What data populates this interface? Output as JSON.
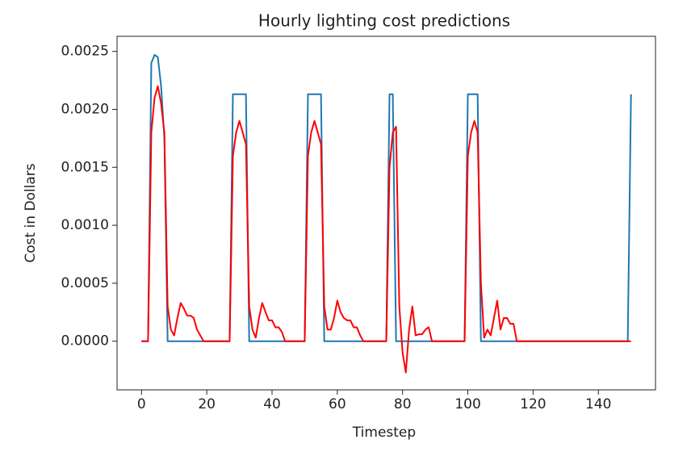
{
  "chart_data": {
    "type": "line",
    "title": "Hourly lighting cost predictions",
    "x_label": "Timestep",
    "y_label": "Cost in Dollars",
    "x": [
      0,
      1,
      2,
      3,
      4,
      5,
      6,
      7,
      8,
      9,
      10,
      11,
      12,
      13,
      14,
      15,
      16,
      17,
      18,
      19,
      20,
      21,
      22,
      23,
      24,
      25,
      26,
      27,
      28,
      29,
      30,
      31,
      32,
      33,
      34,
      35,
      36,
      37,
      38,
      39,
      40,
      41,
      42,
      43,
      44,
      45,
      46,
      47,
      48,
      49,
      50,
      51,
      52,
      53,
      54,
      55,
      56,
      57,
      58,
      59,
      60,
      61,
      62,
      63,
      64,
      65,
      66,
      67,
      68,
      69,
      70,
      71,
      72,
      73,
      74,
      75,
      76,
      77,
      78,
      79,
      80,
      81,
      82,
      83,
      84,
      85,
      86,
      87,
      88,
      89,
      90,
      91,
      92,
      93,
      94,
      95,
      96,
      97,
      98,
      99,
      100,
      101,
      102,
      103,
      104,
      105,
      106,
      107,
      108,
      109,
      110,
      111,
      112,
      113,
      114,
      115,
      116,
      117,
      118,
      119,
      120,
      121,
      122,
      123,
      124,
      125,
      126,
      127,
      128,
      129,
      130,
      131,
      132,
      133,
      134,
      135,
      136,
      137,
      138,
      139,
      140,
      141,
      142,
      143,
      144,
      145,
      146,
      147,
      148,
      149,
      150
    ],
    "series": [
      {
        "color": "#1f77b4",
        "values": [
          0,
          0,
          0,
          0.0024,
          0.00247,
          0.00245,
          0.0022,
          0.00175,
          0,
          0,
          0,
          0,
          0,
          0,
          0,
          0,
          0,
          0,
          0,
          0,
          0,
          0,
          0,
          0,
          0,
          0,
          0,
          0,
          0.00213,
          0.00213,
          0.00213,
          0.00213,
          0.00213,
          0,
          0,
          0,
          0,
          0,
          0,
          0,
          0,
          0,
          0,
          0,
          0,
          0,
          0,
          0,
          0,
          0,
          0,
          0.00213,
          0.00213,
          0.00213,
          0.00213,
          0.00213,
          0,
          0,
          0,
          0,
          0,
          0,
          0,
          0,
          0,
          0,
          0,
          0,
          0,
          0,
          0,
          0,
          0,
          0,
          0,
          0,
          0.00213,
          0.00213,
          0,
          0,
          0,
          0,
          0,
          0,
          0,
          0,
          0,
          0,
          0,
          0,
          0,
          0,
          0,
          0,
          0,
          0,
          0,
          0,
          0,
          0,
          0.00213,
          0.00213,
          0.00213,
          0.00213,
          0,
          0,
          0,
          0,
          0,
          0,
          0,
          0,
          0,
          0,
          0,
          0,
          0,
          0,
          0,
          0,
          0,
          0,
          0,
          0,
          0,
          0,
          0,
          0,
          0,
          0,
          0,
          0,
          0,
          0,
          0,
          0,
          0,
          0,
          0,
          0,
          0,
          0,
          0,
          0,
          0,
          0,
          0,
          0,
          0,
          0,
          0.00213
        ]
      },
      {
        "color": "#ff0000",
        "values": [
          0,
          0,
          0,
          0.0018,
          0.0021,
          0.0022,
          0.00205,
          0.0018,
          0.0003,
          0.0001,
          5e-05,
          0.0002,
          0.00033,
          0.00028,
          0.00022,
          0.00022,
          0.0002,
          0.0001,
          5e-05,
          0,
          0,
          0,
          0,
          0,
          0,
          0,
          0,
          0,
          0.0016,
          0.0018,
          0.0019,
          0.0018,
          0.0017,
          0.0003,
          0.0001,
          3e-05,
          0.0002,
          0.00033,
          0.00025,
          0.00018,
          0.00018,
          0.00012,
          0.00012,
          8e-05,
          0,
          0,
          0,
          0,
          0,
          0,
          0,
          0.0016,
          0.0018,
          0.0019,
          0.0018,
          0.0017,
          0.0003,
          0.0001,
          0.0001,
          0.0002,
          0.00035,
          0.00025,
          0.0002,
          0.00018,
          0.00018,
          0.00012,
          0.00012,
          5e-05,
          0,
          0,
          0,
          0,
          0,
          0,
          0,
          0,
          0.0015,
          0.0018,
          0.00185,
          0.0003,
          -0.0001,
          -0.00027,
          0.0001,
          0.0003,
          5e-05,
          6e-05,
          6e-05,
          0.0001,
          0.00012,
          0,
          0,
          0,
          0,
          0,
          0,
          0,
          0,
          0,
          0,
          0,
          0.0016,
          0.0018,
          0.0019,
          0.0018,
          0.0005,
          3e-05,
          0.0001,
          5e-05,
          0.0002,
          0.00035,
          0.0001,
          0.0002,
          0.0002,
          0.00015,
          0.00015,
          0,
          0,
          0,
          0,
          0,
          0,
          0,
          0,
          0,
          0,
          0,
          0,
          0,
          0,
          0,
          0,
          0,
          0,
          0,
          0,
          0,
          0,
          0,
          0,
          0,
          0,
          0,
          0,
          0,
          0,
          0,
          0,
          0,
          0,
          0,
          0
        ]
      }
    ],
    "xlim": [
      -7.5,
      157.5
    ],
    "xticks": [
      0,
      20,
      40,
      60,
      80,
      100,
      120,
      140
    ],
    "ylim": [
      -0.00042,
      0.00263
    ],
    "yticks": [
      {
        "value": 0,
        "label": "0.0000"
      },
      0.0005,
      {
        "value": 0.001,
        "label": "0.0010"
      },
      0.0015,
      {
        "value": 0.002,
        "label": "0.0020"
      },
      0.0025
    ]
  }
}
